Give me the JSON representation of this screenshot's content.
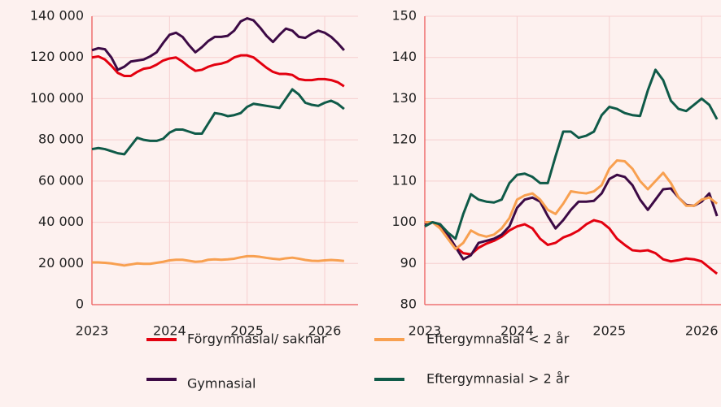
{
  "chart_data": [
    {
      "type": "line",
      "x": [
        2023,
        2023.083,
        2023.167,
        2023.25,
        2023.333,
        2023.417,
        2023.5,
        2023.583,
        2023.667,
        2023.75,
        2023.833,
        2023.917,
        2024,
        2024.083,
        2024.167,
        2024.25,
        2024.333,
        2024.417,
        2024.5,
        2024.583,
        2024.667,
        2024.75,
        2024.833,
        2024.917,
        2025,
        2025.083,
        2025.167,
        2025.25,
        2025.333,
        2025.417,
        2025.5,
        2025.583,
        2025.667,
        2025.75,
        2025.833,
        2025.917,
        2026,
        2026.083,
        2026.167,
        2026.25
      ],
      "xlim": [
        2023,
        2026.43
      ],
      "xticks": [
        2023,
        2024,
        2025,
        2026
      ],
      "ylim": [
        0,
        140000
      ],
      "yticks": [
        0,
        {
          "value": 20000,
          "label": "20 000"
        },
        {
          "value": 40000,
          "label": "40 000"
        },
        {
          "value": 60000,
          "label": "60 000"
        },
        {
          "value": 80000,
          "label": "80 000"
        },
        {
          "value": 100000,
          "label": "100 000"
        },
        {
          "value": 120000,
          "label": "120 000"
        },
        {
          "value": 140000,
          "label": "140 000"
        }
      ],
      "grid": true,
      "series": [
        {
          "name": "Förgymnasial/ saknar",
          "color": "#e3000f",
          "values": [
            120000,
            120500,
            119000,
            116000,
            112500,
            111000,
            111000,
            113000,
            114500,
            115000,
            116500,
            118500,
            119500,
            120000,
            118000,
            115500,
            113500,
            114000,
            115500,
            116500,
            117000,
            118000,
            120000,
            121000,
            121000,
            120000,
            117500,
            115000,
            113000,
            112000,
            112000,
            111500,
            109500,
            109000,
            109000,
            109500,
            109500,
            109000,
            108000,
            106000
          ]
        },
        {
          "name": "Gymnasial",
          "color": "#3c0a45",
          "values": [
            123500,
            124500,
            124000,
            120000,
            114000,
            115500,
            118000,
            118500,
            119000,
            120500,
            122500,
            127000,
            131000,
            132000,
            130000,
            126000,
            122500,
            125000,
            128000,
            130000,
            130000,
            130500,
            133000,
            137500,
            139000,
            138000,
            134500,
            130500,
            127500,
            131000,
            134000,
            133000,
            130000,
            129500,
            131500,
            133000,
            132000,
            130000,
            127000,
            123500
          ]
        },
        {
          "name": "Eftergymnasial < 2 år",
          "color": "#f8a050",
          "values": [
            20500,
            20500,
            20300,
            20000,
            19500,
            19000,
            19500,
            20000,
            19800,
            19800,
            20300,
            20800,
            21500,
            21800,
            21800,
            21300,
            20800,
            21000,
            21800,
            22000,
            21800,
            22000,
            22300,
            23000,
            23500,
            23500,
            23200,
            22700,
            22300,
            22000,
            22500,
            22800,
            22300,
            21700,
            21300,
            21200,
            21500,
            21700,
            21500,
            21200
          ]
        },
        {
          "name": "Eftergymnasial > 2 år",
          "color": "#0f5a48",
          "values": [
            75500,
            76000,
            75500,
            74500,
            73500,
            73000,
            77000,
            81000,
            80000,
            79500,
            79500,
            80500,
            83500,
            85000,
            85000,
            84000,
            83000,
            83000,
            88000,
            93000,
            92500,
            91500,
            92000,
            93000,
            96000,
            97500,
            97000,
            96500,
            96000,
            95500,
            100000,
            104500,
            102000,
            98000,
            97000,
            96500,
            98000,
            99000,
            97500,
            95000
          ]
        }
      ]
    },
    {
      "type": "line",
      "x": [
        2023,
        2023.083,
        2023.167,
        2023.25,
        2023.333,
        2023.417,
        2023.5,
        2023.583,
        2023.667,
        2023.75,
        2023.833,
        2023.917,
        2024,
        2024.083,
        2024.167,
        2024.25,
        2024.333,
        2024.417,
        2024.5,
        2024.583,
        2024.667,
        2024.75,
        2024.833,
        2024.917,
        2025,
        2025.083,
        2025.167,
        2025.25,
        2025.333,
        2025.417,
        2025.5,
        2025.583,
        2025.667,
        2025.75,
        2025.833,
        2025.917,
        2026,
        2026.083,
        2026.167
      ],
      "xlim": [
        2023,
        2026.21
      ],
      "xticks": [
        2023,
        2024,
        2025,
        2026
      ],
      "ylim": [
        80,
        150
      ],
      "yticks": [
        80,
        90,
        100,
        110,
        120,
        130,
        140,
        150
      ],
      "grid": true,
      "series": [
        {
          "color": "#e3000f",
          "values": [
            100,
            100,
            99,
            97,
            94,
            92.5,
            92.2,
            93.8,
            94.8,
            95.5,
            96.5,
            98,
            99,
            99.5,
            98.5,
            96,
            94.5,
            95,
            96.3,
            97,
            98,
            99.5,
            100.5,
            100,
            98.5,
            96,
            94.5,
            93.2,
            93,
            93.2,
            92.5,
            91,
            90.5,
            90.8,
            91.2,
            91,
            90.5,
            89,
            87.5
          ]
        },
        {
          "color": "#3c0a45",
          "values": [
            99.5,
            100,
            99.5,
            97,
            94,
            91,
            92,
            95,
            95.5,
            96,
            97,
            99,
            103.5,
            105.5,
            106,
            105,
            101.5,
            98.5,
            100.5,
            103,
            105,
            105,
            105.2,
            107,
            110.5,
            111.5,
            111,
            109,
            105.5,
            103,
            105.5,
            108,
            108.2,
            106,
            104.2,
            104,
            105,
            107,
            101.5
          ]
        },
        {
          "color": "#f8a050",
          "values": [
            100,
            100,
            98.5,
            96,
            93.5,
            95,
            98,
            97,
            96.5,
            97,
            98.5,
            101,
            105.5,
            106.5,
            107,
            105.5,
            103,
            102,
            104.5,
            107.5,
            107.2,
            107,
            107.5,
            109,
            113,
            115,
            114.8,
            113,
            110,
            108,
            110,
            112,
            109.5,
            106,
            104,
            104,
            105.5,
            106,
            104.5
          ]
        },
        {
          "color": "#0f5a48",
          "values": [
            99,
            100,
            99.5,
            97.5,
            96,
            102,
            106.8,
            105.5,
            105,
            104.8,
            105.5,
            109.5,
            111.5,
            111.8,
            111,
            109.5,
            109.5,
            116,
            122,
            122,
            120.5,
            121,
            122,
            126,
            128,
            127.5,
            126.5,
            126,
            125.8,
            132,
            137,
            134.5,
            129.5,
            127.5,
            127,
            128.5,
            130,
            128.5,
            125
          ]
        }
      ]
    }
  ]
}
